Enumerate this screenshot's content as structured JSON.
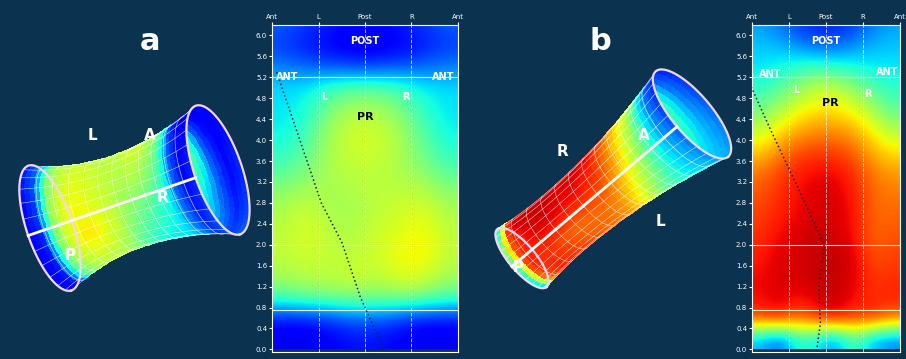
{
  "chart_data": [
    {
      "type": "heatmap",
      "label": "a",
      "tube_labels": [
        "L",
        "A",
        "R",
        "P"
      ],
      "xlim": [
        0,
        4
      ],
      "xticks": [
        {
          "value": 0,
          "label": "Ant"
        },
        {
          "value": 1,
          "label": "L"
        },
        {
          "value": 2,
          "label": "Post"
        },
        {
          "value": 3,
          "label": "R"
        },
        {
          "value": 4,
          "label": "Ant"
        }
      ],
      "ylim": [
        -0.05,
        6.2
      ],
      "yticks": [
        0.0,
        0.4,
        0.8,
        1.2,
        1.6,
        2.0,
        2.4,
        2.8,
        3.2,
        3.6,
        4.0,
        4.4,
        4.8,
        5.2,
        5.6,
        6.0
      ],
      "grid": true,
      "region_labels": [
        "POST",
        "ANT",
        "L",
        "PR",
        "R",
        "ANT"
      ],
      "marker_lines": [
        5.2,
        2.0,
        0.75
      ],
      "trace": {
        "x": [
          0.1,
          0.6,
          1.06,
          1.5,
          1.9,
          2.4
        ],
        "y": [
          5.3,
          4.0,
          2.8,
          2.05,
          1.0,
          0.0
        ]
      },
      "value_range": [
        0,
        100
      ],
      "cell_x": [
        0.25,
        0.75,
        1.25,
        1.75,
        2.25,
        2.75,
        3.25,
        3.75
      ],
      "cell_y": [
        0.2,
        0.6,
        1.0,
        1.4,
        1.8,
        2.2,
        2.6,
        3.0,
        3.4,
        3.8,
        4.2,
        4.6,
        5.0,
        5.4,
        5.8,
        6.2
      ],
      "cells": [
        [
          10,
          10,
          12,
          14,
          14,
          12,
          10,
          10
        ],
        [
          15,
          15,
          18,
          22,
          22,
          18,
          15,
          15
        ],
        [
          45,
          48,
          50,
          52,
          50,
          52,
          50,
          45
        ],
        [
          55,
          58,
          58,
          60,
          58,
          62,
          62,
          55
        ],
        [
          58,
          60,
          58,
          58,
          60,
          64,
          66,
          58
        ],
        [
          58,
          62,
          58,
          56,
          60,
          62,
          66,
          58
        ],
        [
          56,
          60,
          55,
          55,
          58,
          60,
          62,
          56
        ],
        [
          52,
          56,
          55,
          56,
          58,
          58,
          58,
          52
        ],
        [
          45,
          50,
          56,
          58,
          58,
          56,
          52,
          45
        ],
        [
          40,
          46,
          56,
          60,
          60,
          56,
          48,
          40
        ],
        [
          36,
          42,
          55,
          60,
          60,
          55,
          45,
          36
        ],
        [
          35,
          38,
          50,
          55,
          55,
          50,
          40,
          35
        ],
        [
          34,
          35,
          42,
          45,
          45,
          42,
          36,
          34
        ],
        [
          25,
          22,
          20,
          18,
          18,
          20,
          22,
          25
        ],
        [
          18,
          14,
          12,
          10,
          10,
          12,
          14,
          18
        ],
        [
          22,
          18,
          15,
          12,
          12,
          15,
          18,
          22
        ]
      ]
    },
    {
      "type": "heatmap",
      "label": "b",
      "tube_labels": [
        "R",
        "A",
        "L",
        "P"
      ],
      "xlim": [
        0,
        4
      ],
      "xticks": [
        {
          "value": 0,
          "label": "Ant"
        },
        {
          "value": 1,
          "label": "L"
        },
        {
          "value": 2,
          "label": "Post"
        },
        {
          "value": 3,
          "label": "R"
        },
        {
          "value": 4,
          "label": "Ant"
        }
      ],
      "ylim": [
        -0.05,
        6.2
      ],
      "yticks": [
        0.0,
        0.4,
        0.8,
        1.2,
        1.6,
        2.0,
        2.4,
        2.8,
        3.2,
        3.6,
        4.0,
        4.4,
        4.8,
        5.2,
        5.6,
        6.0
      ],
      "grid": true,
      "region_labels": [
        "POST",
        "ANT",
        "L",
        "PR",
        "R",
        "ANT"
      ],
      "marker_lines": [
        5.2,
        2.0,
        0.75
      ],
      "trace": {
        "x": [
          -0.2,
          0.5,
          1.3,
          1.95,
          1.8,
          1.85,
          1.75
        ],
        "y": [
          5.3,
          4.2,
          3.0,
          2.0,
          1.2,
          0.5,
          0.0
        ]
      },
      "value_range": [
        0,
        100
      ],
      "cell_x": [
        0.25,
        0.75,
        1.25,
        1.75,
        2.25,
        2.75,
        3.25,
        3.75
      ],
      "cell_y": [
        0.2,
        0.6,
        1.0,
        1.4,
        1.8,
        2.2,
        2.6,
        3.0,
        3.4,
        3.8,
        4.2,
        4.6,
        5.0,
        5.4,
        5.8,
        6.2
      ],
      "cells": [
        [
          30,
          20,
          40,
          35,
          25,
          45,
          30,
          25
        ],
        [
          85,
          90,
          80,
          88,
          92,
          85,
          88,
          80
        ],
        [
          90,
          92,
          90,
          92,
          94,
          90,
          86,
          88
        ],
        [
          90,
          92,
          92,
          94,
          94,
          92,
          85,
          86
        ],
        [
          88,
          92,
          92,
          94,
          94,
          92,
          82,
          84
        ],
        [
          86,
          90,
          92,
          94,
          92,
          90,
          80,
          82
        ],
        [
          84,
          88,
          90,
          92,
          92,
          90,
          80,
          80
        ],
        [
          82,
          86,
          90,
          92,
          92,
          88,
          80,
          78
        ],
        [
          78,
          84,
          88,
          90,
          90,
          86,
          78,
          74
        ],
        [
          68,
          76,
          82,
          84,
          84,
          80,
          72,
          66
        ],
        [
          58,
          66,
          72,
          75,
          75,
          72,
          64,
          56
        ],
        [
          48,
          55,
          62,
          66,
          66,
          62,
          55,
          46
        ],
        [
          40,
          45,
          52,
          58,
          58,
          52,
          45,
          40
        ],
        [
          35,
          38,
          40,
          42,
          40,
          38,
          36,
          35
        ],
        [
          32,
          30,
          26,
          22,
          22,
          26,
          30,
          32
        ],
        [
          28,
          24,
          18,
          15,
          15,
          18,
          24,
          28
        ]
      ]
    }
  ]
}
